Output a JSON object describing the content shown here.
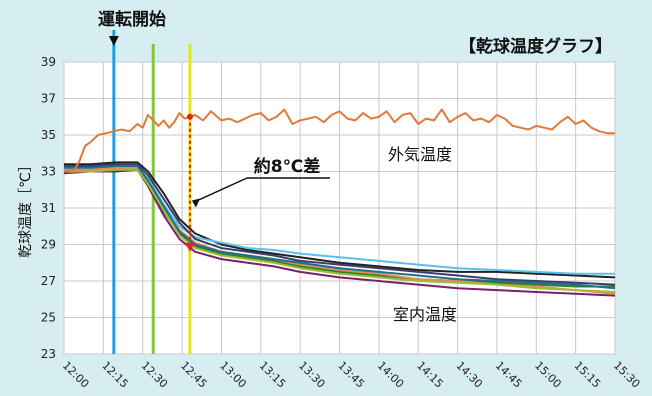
{
  "chart_data": {
    "type": "line",
    "title": "【乾球温度グラフ】",
    "ylabel": "乾球温度［℃］",
    "xlabel": "",
    "ylim": [
      23,
      39
    ],
    "yticks": [
      "23",
      "25",
      "27",
      "29",
      "31",
      "33",
      "35",
      "37",
      "39"
    ],
    "xlim": [
      "12:00",
      "15:30"
    ],
    "xticks": [
      "12:00",
      "12:15",
      "12:30",
      "12:45",
      "13:00",
      "13:15",
      "13:30",
      "13:45",
      "14:00",
      "14:15",
      "14:30",
      "14:45",
      "15:00",
      "15:15",
      "15:30"
    ],
    "grid": true,
    "markers": [
      {
        "time": "12:19",
        "color": "#1aa0e0",
        "label": "運転開始"
      },
      {
        "time": "12:34",
        "color": "#86c440",
        "label": ""
      },
      {
        "time": "12:48",
        "color": "#e6e619",
        "label": ""
      }
    ],
    "annotations": {
      "start_label": "運転開始",
      "delta_label": "約8℃差",
      "outdoor_label": "外気温度",
      "indoor_label": "室内温度",
      "delta_time": "12:48",
      "delta_from": 36.0,
      "delta_to": 28.6,
      "delta_color": "#e0241b"
    },
    "outdoor": {
      "name": "外気温度",
      "color": "#e07a3a",
      "x": [
        "12:00",
        "12:04",
        "12:06",
        "12:08",
        "12:10",
        "12:13",
        "12:16",
        "12:19",
        "12:22",
        "12:25",
        "12:28",
        "12:30",
        "12:32",
        "12:34",
        "12:36",
        "12:38",
        "12:40",
        "12:42",
        "12:44",
        "12:46",
        "12:48",
        "12:50",
        "12:53",
        "12:56",
        "13:00",
        "13:03",
        "13:06",
        "13:09",
        "13:12",
        "13:15",
        "13:18",
        "13:21",
        "13:24",
        "13:27",
        "13:30",
        "13:33",
        "13:36",
        "13:39",
        "13:42",
        "13:45",
        "13:48",
        "13:51",
        "13:54",
        "13:57",
        "14:00",
        "14:03",
        "14:06",
        "14:09",
        "14:12",
        "14:15",
        "14:18",
        "14:21",
        "14:24",
        "14:27",
        "14:30",
        "14:33",
        "14:36",
        "14:39",
        "14:42",
        "14:45",
        "14:48",
        "14:51",
        "14:54",
        "14:57",
        "15:00",
        "15:03",
        "15:06",
        "15:09",
        "15:12",
        "15:15",
        "15:18",
        "15:21",
        "15:24",
        "15:27",
        "15:30"
      ],
      "y": [
        33.0,
        33.1,
        33.6,
        34.4,
        34.6,
        35.0,
        35.1,
        35.2,
        35.3,
        35.2,
        35.6,
        35.4,
        36.1,
        35.8,
        35.5,
        35.8,
        35.4,
        35.7,
        36.2,
        35.9,
        36.0,
        36.1,
        35.8,
        36.3,
        35.8,
        35.9,
        35.7,
        35.9,
        36.1,
        36.2,
        35.8,
        36.0,
        36.4,
        35.6,
        35.8,
        35.9,
        36.0,
        35.7,
        36.1,
        36.3,
        35.9,
        35.8,
        36.2,
        35.9,
        36.0,
        36.3,
        35.7,
        36.1,
        36.2,
        35.6,
        35.9,
        35.8,
        36.4,
        35.7,
        36.0,
        36.2,
        35.8,
        35.9,
        35.7,
        36.1,
        35.9,
        35.5,
        35.4,
        35.3,
        35.5,
        35.4,
        35.3,
        35.7,
        36.0,
        35.6,
        35.8,
        35.4,
        35.2,
        35.1,
        35.1
      ]
    },
    "series": [
      {
        "name": "",
        "color": "#222222",
        "x": [
          "12:00",
          "12:10",
          "12:20",
          "12:28",
          "12:32",
          "12:38",
          "12:44",
          "12:50",
          "13:00",
          "13:10",
          "13:20",
          "13:30",
          "13:45",
          "14:00",
          "14:15",
          "14:30",
          "14:45",
          "15:00",
          "15:15",
          "15:30"
        ],
        "y": [
          33.4,
          33.4,
          33.5,
          33.5,
          33.0,
          31.8,
          30.4,
          29.6,
          29.0,
          28.7,
          28.5,
          28.3,
          28.0,
          27.8,
          27.6,
          27.5,
          27.5,
          27.4,
          27.3,
          27.2
        ]
      },
      {
        "name": "",
        "color": "#5bc0e8",
        "x": [
          "12:00",
          "12:10",
          "12:20",
          "12:28",
          "12:32",
          "12:38",
          "12:44",
          "12:50",
          "13:00",
          "13:10",
          "13:20",
          "13:30",
          "13:45",
          "14:00",
          "14:15",
          "14:30",
          "14:45",
          "15:00",
          "15:15",
          "15:30"
        ],
        "y": [
          33.2,
          33.2,
          33.3,
          33.3,
          32.6,
          31.2,
          30.0,
          29.4,
          29.1,
          28.8,
          28.7,
          28.5,
          28.3,
          28.1,
          27.9,
          27.7,
          27.6,
          27.5,
          27.4,
          27.4
        ]
      },
      {
        "name": "",
        "color": "#2e7d32",
        "x": [
          "12:00",
          "12:10",
          "12:20",
          "12:28",
          "12:32",
          "12:38",
          "12:44",
          "12:50",
          "13:00",
          "13:10",
          "13:20",
          "13:30",
          "13:45",
          "14:00",
          "14:15",
          "14:30",
          "14:45",
          "15:00",
          "15:15",
          "15:30"
        ],
        "y": [
          33.0,
          33.1,
          33.2,
          33.2,
          32.4,
          30.8,
          29.6,
          28.9,
          28.5,
          28.3,
          28.1,
          27.8,
          27.5,
          27.3,
          27.1,
          27.0,
          26.9,
          26.8,
          26.7,
          26.7
        ]
      },
      {
        "name": "",
        "color": "#7a1f6b",
        "x": [
          "12:00",
          "12:10",
          "12:20",
          "12:28",
          "12:32",
          "12:38",
          "12:44",
          "12:50",
          "13:00",
          "13:10",
          "13:20",
          "13:30",
          "13:45",
          "14:00",
          "14:15",
          "14:30",
          "14:45",
          "15:00",
          "15:15",
          "15:30"
        ],
        "y": [
          32.9,
          33.0,
          33.0,
          33.1,
          32.2,
          30.6,
          29.3,
          28.6,
          28.2,
          28.0,
          27.8,
          27.5,
          27.2,
          27.0,
          26.8,
          26.6,
          26.5,
          26.4,
          26.3,
          26.2
        ]
      },
      {
        "name": "",
        "color": "#e08a5a",
        "x": [
          "12:00",
          "12:10",
          "12:20",
          "12:28",
          "12:32",
          "12:38",
          "12:44",
          "12:50",
          "13:00",
          "13:10",
          "13:20",
          "13:30",
          "13:45",
          "14:00",
          "14:15",
          "14:30",
          "14:45",
          "15:00",
          "15:15",
          "15:30"
        ],
        "y": [
          33.1,
          33.1,
          33.2,
          33.2,
          32.5,
          31.0,
          29.8,
          29.1,
          28.6,
          28.4,
          28.2,
          27.9,
          27.6,
          27.4,
          27.1,
          27.0,
          26.8,
          26.7,
          26.5,
          26.3
        ]
      },
      {
        "name": "",
        "color": "#3d3d6b",
        "x": [
          "12:00",
          "12:10",
          "12:20",
          "12:28",
          "12:32",
          "12:38",
          "12:44",
          "12:50",
          "13:00",
          "13:10",
          "13:20",
          "13:30",
          "13:45",
          "14:00",
          "14:15",
          "14:30",
          "14:45",
          "15:00",
          "15:15",
          "15:30"
        ],
        "y": [
          33.3,
          33.3,
          33.4,
          33.4,
          32.8,
          31.5,
          30.2,
          29.3,
          28.8,
          28.6,
          28.4,
          28.1,
          27.9,
          27.7,
          27.5,
          27.3,
          27.1,
          27.0,
          26.9,
          26.8
        ]
      },
      {
        "name": "",
        "color": "#9bbf30",
        "x": [
          "12:00",
          "12:10",
          "12:20",
          "12:28",
          "12:32",
          "12:38",
          "12:44",
          "12:50",
          "13:00",
          "13:10",
          "13:20",
          "13:30",
          "13:45",
          "14:00",
          "14:15",
          "14:30",
          "14:45",
          "15:00",
          "15:15",
          "15:30"
        ],
        "y": [
          33.0,
          33.0,
          33.1,
          33.1,
          32.3,
          30.9,
          29.5,
          28.8,
          28.4,
          28.2,
          28.0,
          27.7,
          27.4,
          27.2,
          27.0,
          26.9,
          26.8,
          26.6,
          26.5,
          26.4
        ]
      },
      {
        "name": "",
        "color": "#1f6f8b",
        "x": [
          "12:00",
          "12:10",
          "12:20",
          "12:28",
          "12:32",
          "12:38",
          "12:44",
          "12:50",
          "13:00",
          "13:10",
          "13:20",
          "13:30",
          "13:45",
          "14:00",
          "14:15",
          "14:30",
          "14:45",
          "15:00",
          "15:15",
          "15:30"
        ],
        "y": [
          33.2,
          33.2,
          33.3,
          33.3,
          32.5,
          31.1,
          29.7,
          29.0,
          28.6,
          28.4,
          28.2,
          28.0,
          27.7,
          27.5,
          27.3,
          27.1,
          27.0,
          26.9,
          26.8,
          26.6
        ]
      }
    ]
  }
}
